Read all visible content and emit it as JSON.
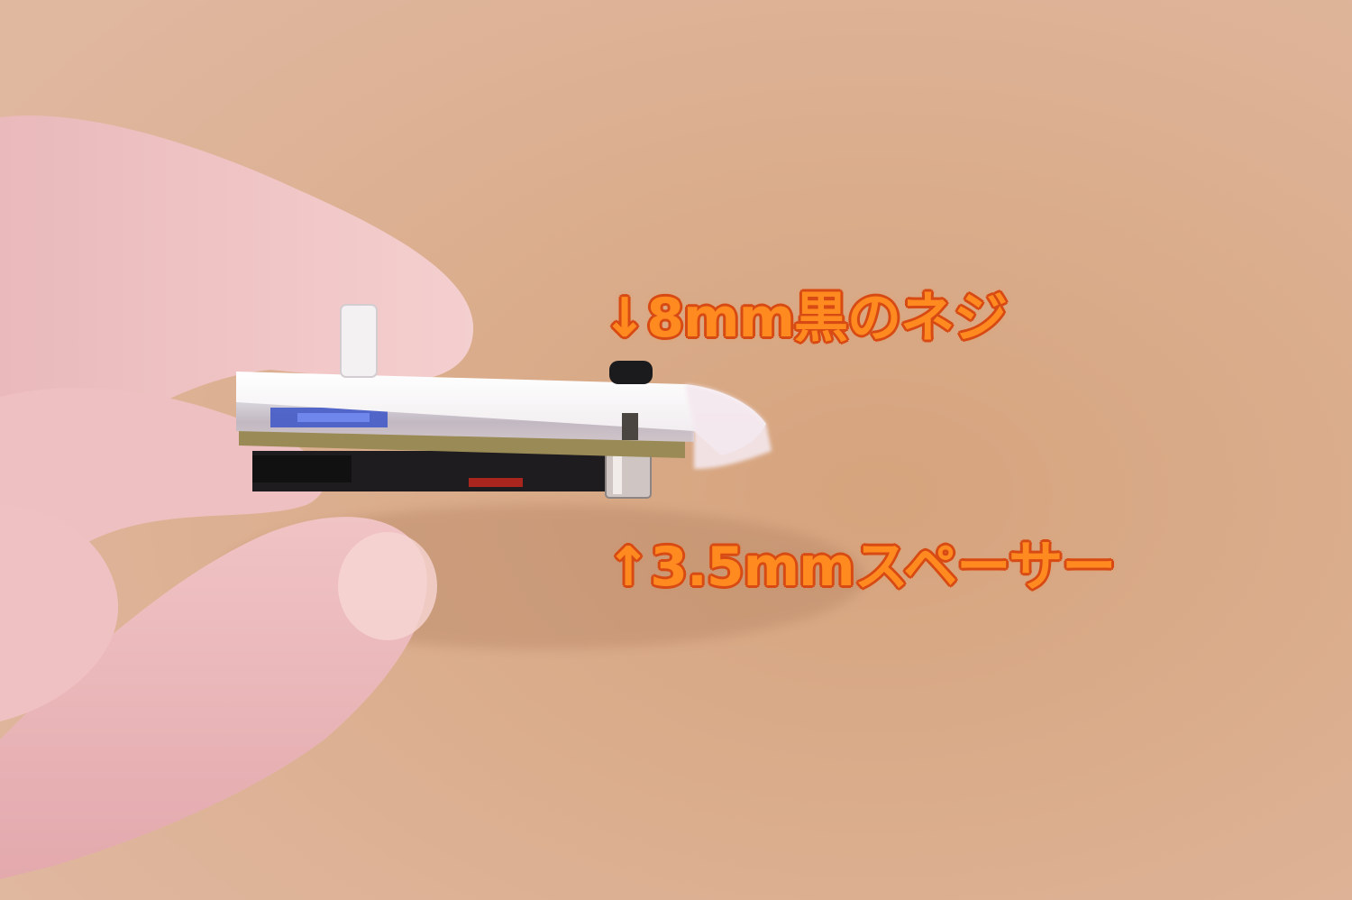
{
  "annotations": {
    "screw_label": "↓8mm黒のネジ",
    "spacer_label": "↑3.5mmスペーサー"
  },
  "colors": {
    "background_cork": "#d9ae8d",
    "label_text": "#ff8a1f",
    "label_outline": "#d84a14",
    "acrylic_plate": "#f6f1f3",
    "pcb_edge": "#9a8a55"
  }
}
